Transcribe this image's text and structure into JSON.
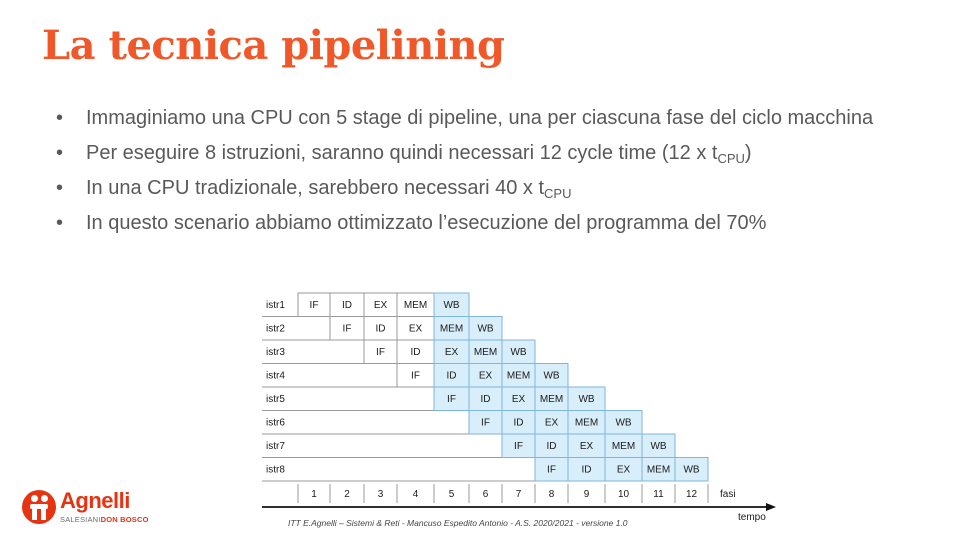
{
  "slide": {
    "title": "La tecnica pipelining",
    "bullets": [
      {
        "text": "Immaginiamo una CPU con 5 stage di pipeline, una per ciascuna fase del ciclo macchina"
      },
      {
        "text": "Per eseguire 8 istruzioni, saranno quindi necessari 12 cycle time (12 x  t",
        "sub": "CPU",
        "after": ")"
      },
      {
        "text": "In una CPU tradizionale, sarebbero necessari 40 x t",
        "sub": "CPU",
        "after": ""
      },
      {
        "text": "In questo scenario abbiamo ottimizzato l’esecuzione del programma del 70%"
      }
    ],
    "footer": "ITT E.Agnelli – Sistemi & Reti - Mancuso  Espedito Antonio - A.S. 2020/2021 - versione 1.0"
  },
  "logo": {
    "name": "Agnelli",
    "sub_a": "SALESIANI",
    "sub_b": "DON BOSCO"
  },
  "diagram": {
    "instructions": [
      "istr1",
      "istr2",
      "istr3",
      "istr4",
      "istr5",
      "istr6",
      "istr7",
      "istr8"
    ],
    "stages": [
      "IF",
      "ID",
      "EX",
      "MEM",
      "WB"
    ],
    "cycles": [
      "1",
      "2",
      "3",
      "4",
      "5",
      "6",
      "7",
      "8",
      "9",
      "10",
      "11",
      "12"
    ],
    "axis_label": "fasi",
    "time_label": "tempo",
    "colors": {
      "highlight": "#d8eefa",
      "border": "#7fb6dc",
      "row_line": "#9a9a9a"
    }
  }
}
